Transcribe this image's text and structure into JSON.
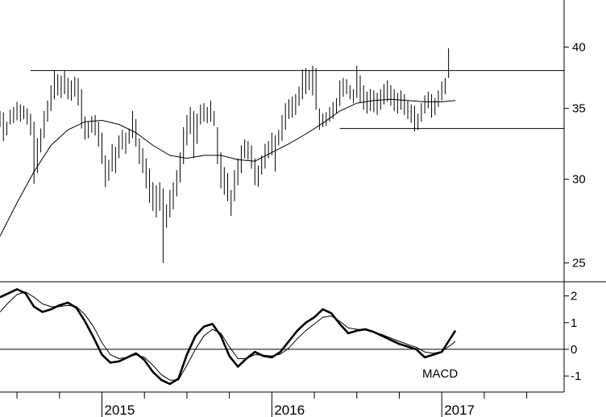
{
  "chart_data": [
    {
      "type": "ohlc",
      "panel": "price",
      "x_unit": "year",
      "x_range": [
        2014.4,
        2017.72
      ],
      "y_scale": "log",
      "y_range": [
        24.0,
        44.0
      ],
      "y_ticks": [
        25,
        30,
        35,
        40
      ],
      "y_tick_labels": [
        "25",
        "30",
        "35",
        "40"
      ],
      "grid": false,
      "bars": [
        [
          2014.4,
          34.8,
          33.6
        ],
        [
          2014.42,
          34.7,
          32.6
        ],
        [
          2014.44,
          34.0,
          33.0
        ],
        [
          2014.46,
          34.9,
          33.8
        ],
        [
          2014.48,
          35.1,
          33.9
        ],
        [
          2014.5,
          35.5,
          34.1
        ],
        [
          2014.52,
          35.3,
          34.0
        ],
        [
          2014.54,
          35.2,
          34.2
        ],
        [
          2014.56,
          35.0,
          33.8
        ],
        [
          2014.58,
          34.6,
          33.0
        ],
        [
          2014.6,
          34.0,
          29.7
        ],
        [
          2014.62,
          32.8,
          30.4
        ],
        [
          2014.64,
          33.5,
          31.8
        ],
        [
          2014.66,
          34.8,
          32.8
        ],
        [
          2014.68,
          35.6,
          34.0
        ],
        [
          2014.7,
          36.8,
          34.8
        ],
        [
          2014.72,
          38.0,
          35.7
        ],
        [
          2014.74,
          37.7,
          36.0
        ],
        [
          2014.76,
          37.6,
          35.8
        ],
        [
          2014.78,
          38.0,
          36.1
        ],
        [
          2014.8,
          37.4,
          35.7
        ],
        [
          2014.82,
          37.2,
          35.6
        ],
        [
          2014.84,
          37.5,
          35.9
        ],
        [
          2014.86,
          37.4,
          35.2
        ],
        [
          2014.88,
          36.5,
          33.5
        ],
        [
          2014.9,
          34.4,
          32.7
        ],
        [
          2014.92,
          34.0,
          32.8
        ],
        [
          2014.94,
          34.4,
          33.2
        ],
        [
          2014.96,
          34.5,
          33.0
        ],
        [
          2014.98,
          34.0,
          32.2
        ],
        [
          2015.0,
          33.2,
          31.0
        ],
        [
          2015.02,
          31.6,
          29.5
        ],
        [
          2015.04,
          31.3,
          29.9
        ],
        [
          2015.06,
          32.4,
          30.5
        ],
        [
          2015.08,
          32.2,
          30.4
        ],
        [
          2015.1,
          33.0,
          31.4
        ],
        [
          2015.12,
          33.4,
          32.0
        ],
        [
          2015.14,
          33.2,
          31.7
        ],
        [
          2015.16,
          33.5,
          32.4
        ],
        [
          2015.18,
          34.8,
          32.8
        ],
        [
          2015.2,
          34.2,
          32.2
        ],
        [
          2015.22,
          32.8,
          31.0
        ],
        [
          2015.24,
          32.1,
          30.4
        ],
        [
          2015.26,
          31.4,
          29.4
        ],
        [
          2015.28,
          30.7,
          28.5
        ],
        [
          2015.3,
          29.8,
          28.0
        ],
        [
          2015.32,
          29.6,
          27.6
        ],
        [
          2015.34,
          29.8,
          28.0
        ],
        [
          2015.36,
          29.4,
          25.0
        ],
        [
          2015.38,
          28.4,
          27.0
        ],
        [
          2015.4,
          29.3,
          27.6
        ],
        [
          2015.42,
          29.8,
          28.1
        ],
        [
          2015.44,
          30.6,
          28.9
        ],
        [
          2015.46,
          31.8,
          29.8
        ],
        [
          2015.48,
          33.6,
          31.0
        ],
        [
          2015.5,
          34.5,
          32.3
        ],
        [
          2015.52,
          35.1,
          33.1
        ],
        [
          2015.54,
          34.8,
          31.4
        ],
        [
          2015.56,
          34.6,
          32.4
        ],
        [
          2015.58,
          35.3,
          33.8
        ],
        [
          2015.6,
          35.4,
          34.0
        ],
        [
          2015.62,
          35.1,
          33.9
        ],
        [
          2015.64,
          35.6,
          34.0
        ],
        [
          2015.66,
          34.8,
          33.7
        ],
        [
          2015.68,
          33.6,
          31.0
        ],
        [
          2015.7,
          31.8,
          29.4
        ],
        [
          2015.72,
          30.8,
          29.0
        ],
        [
          2015.74,
          30.4,
          28.6
        ],
        [
          2015.76,
          29.3,
          27.7
        ],
        [
          2015.78,
          30.6,
          28.6
        ],
        [
          2015.8,
          31.4,
          29.6
        ],
        [
          2015.82,
          32.3,
          30.4
        ],
        [
          2015.84,
          32.7,
          31.4
        ],
        [
          2015.86,
          32.6,
          31.3
        ],
        [
          2015.88,
          32.3,
          30.7
        ],
        [
          2015.9,
          31.4,
          29.6
        ],
        [
          2015.92,
          30.9,
          29.5
        ],
        [
          2015.94,
          31.6,
          30.3
        ],
        [
          2015.96,
          32.4,
          30.7
        ],
        [
          2015.98,
          32.6,
          31.4
        ],
        [
          2016.0,
          33.2,
          31.6
        ],
        [
          2016.02,
          33.0,
          30.5
        ],
        [
          2016.04,
          33.4,
          32.3
        ],
        [
          2016.06,
          34.5,
          32.6
        ],
        [
          2016.08,
          35.4,
          33.4
        ],
        [
          2016.1,
          35.7,
          34.2
        ],
        [
          2016.12,
          35.9,
          34.3
        ],
        [
          2016.14,
          36.1,
          34.5
        ],
        [
          2016.16,
          36.7,
          35.2
        ],
        [
          2016.18,
          38.1,
          35.7
        ],
        [
          2016.2,
          38.2,
          36.1
        ],
        [
          2016.22,
          38.0,
          36.4
        ],
        [
          2016.24,
          38.4,
          36.0
        ],
        [
          2016.26,
          38.2,
          34.9
        ],
        [
          2016.28,
          35.0,
          33.4
        ],
        [
          2016.3,
          34.6,
          33.6
        ],
        [
          2016.32,
          34.7,
          33.7
        ],
        [
          2016.34,
          35.1,
          34.0
        ],
        [
          2016.36,
          35.5,
          34.2
        ],
        [
          2016.38,
          35.8,
          34.6
        ],
        [
          2016.4,
          37.2,
          35.2
        ],
        [
          2016.42,
          37.4,
          35.9
        ],
        [
          2016.44,
          37.3,
          36.1
        ],
        [
          2016.46,
          36.8,
          35.7
        ],
        [
          2016.48,
          36.5,
          35.4
        ],
        [
          2016.5,
          38.4,
          35.8
        ],
        [
          2016.52,
          37.6,
          35.4
        ],
        [
          2016.54,
          36.8,
          34.9
        ],
        [
          2016.56,
          36.3,
          34.6
        ],
        [
          2016.58,
          36.5,
          34.8
        ],
        [
          2016.6,
          36.4,
          34.7
        ],
        [
          2016.62,
          36.2,
          34.5
        ],
        [
          2016.64,
          36.5,
          34.9
        ],
        [
          2016.66,
          36.9,
          35.3
        ],
        [
          2016.68,
          37.2,
          35.5
        ],
        [
          2016.7,
          36.8,
          35.2
        ],
        [
          2016.72,
          36.5,
          34.8
        ],
        [
          2016.74,
          36.2,
          34.6
        ],
        [
          2016.76,
          36.4,
          34.9
        ],
        [
          2016.78,
          36.1,
          34.5
        ],
        [
          2016.8,
          35.6,
          34.2
        ],
        [
          2016.82,
          35.3,
          33.9
        ],
        [
          2016.84,
          35.2,
          33.3
        ],
        [
          2016.86,
          34.6,
          33.4
        ],
        [
          2016.88,
          35.4,
          34.0
        ],
        [
          2016.9,
          36.0,
          34.6
        ],
        [
          2016.92,
          36.3,
          35.0
        ],
        [
          2016.94,
          36.1,
          34.3
        ],
        [
          2016.96,
          35.8,
          34.5
        ],
        [
          2016.98,
          36.4,
          35.1
        ],
        [
          2017.0,
          37.1,
          35.6
        ],
        [
          2017.02,
          37.4,
          36.1
        ],
        [
          2017.04,
          39.9,
          37.4
        ]
      ]
    },
    {
      "type": "line",
      "panel": "macd",
      "x_unit": "year",
      "x_range": [
        2014.4,
        2017.72
      ],
      "y_range": [
        -1.6,
        2.5
      ],
      "y_ticks": [
        -1,
        0,
        1,
        2
      ],
      "y_tick_labels": [
        "-1",
        "0",
        "1",
        "2"
      ],
      "annotation": "MACD",
      "grid": false,
      "series": [
        {
          "values": [
            [
              2014.4,
              1.95
            ],
            [
              2014.45,
              2.1
            ],
            [
              2014.5,
              2.25
            ],
            [
              2014.55,
              2.1
            ],
            [
              2014.6,
              1.6
            ],
            [
              2014.65,
              1.4
            ],
            [
              2014.7,
              1.5
            ],
            [
              2014.75,
              1.65
            ],
            [
              2014.8,
              1.75
            ],
            [
              2014.85,
              1.55
            ],
            [
              2014.9,
              1.05
            ],
            [
              2014.95,
              0.45
            ],
            [
              2015.0,
              -0.2
            ],
            [
              2015.05,
              -0.5
            ],
            [
              2015.1,
              -0.45
            ],
            [
              2015.15,
              -0.3
            ],
            [
              2015.2,
              -0.15
            ],
            [
              2015.25,
              -0.4
            ],
            [
              2015.3,
              -0.85
            ],
            [
              2015.35,
              -1.15
            ],
            [
              2015.4,
              -1.3
            ],
            [
              2015.45,
              -1.1
            ],
            [
              2015.5,
              -0.2
            ],
            [
              2015.55,
              0.5
            ],
            [
              2015.6,
              0.85
            ],
            [
              2015.65,
              0.95
            ],
            [
              2015.7,
              0.5
            ],
            [
              2015.75,
              -0.25
            ],
            [
              2015.8,
              -0.65
            ],
            [
              2015.85,
              -0.35
            ],
            [
              2015.9,
              -0.1
            ],
            [
              2015.95,
              -0.25
            ],
            [
              2016.0,
              -0.3
            ],
            [
              2016.05,
              -0.1
            ],
            [
              2016.1,
              0.3
            ],
            [
              2016.15,
              0.7
            ],
            [
              2016.2,
              1.0
            ],
            [
              2016.25,
              1.2
            ],
            [
              2016.3,
              1.5
            ],
            [
              2016.35,
              1.35
            ],
            [
              2016.4,
              0.95
            ],
            [
              2016.45,
              0.6
            ],
            [
              2016.5,
              0.7
            ],
            [
              2016.55,
              0.75
            ],
            [
              2016.6,
              0.65
            ],
            [
              2016.65,
              0.5
            ],
            [
              2016.7,
              0.35
            ],
            [
              2016.75,
              0.2
            ],
            [
              2016.8,
              0.1
            ],
            [
              2016.85,
              0.0
            ],
            [
              2016.9,
              -0.3
            ],
            [
              2016.95,
              -0.2
            ],
            [
              2017.0,
              -0.1
            ],
            [
              2017.05,
              0.4
            ],
            [
              2017.08,
              0.7
            ]
          ]
        },
        {
          "values": [
            [
              2014.4,
              1.4
            ],
            [
              2014.45,
              1.75
            ],
            [
              2014.5,
              2.05
            ],
            [
              2014.55,
              2.15
            ],
            [
              2014.6,
              1.95
            ],
            [
              2014.65,
              1.7
            ],
            [
              2014.7,
              1.6
            ],
            [
              2014.75,
              1.6
            ],
            [
              2014.8,
              1.65
            ],
            [
              2014.85,
              1.6
            ],
            [
              2014.9,
              1.3
            ],
            [
              2014.95,
              0.85
            ],
            [
              2015.0,
              0.25
            ],
            [
              2015.05,
              -0.2
            ],
            [
              2015.1,
              -0.35
            ],
            [
              2015.15,
              -0.3
            ],
            [
              2015.2,
              -0.2
            ],
            [
              2015.25,
              -0.3
            ],
            [
              2015.3,
              -0.6
            ],
            [
              2015.35,
              -0.95
            ],
            [
              2015.4,
              -1.15
            ],
            [
              2015.45,
              -1.15
            ],
            [
              2015.5,
              -0.6
            ],
            [
              2015.55,
              0.0
            ],
            [
              2015.6,
              0.5
            ],
            [
              2015.65,
              0.75
            ],
            [
              2015.7,
              0.6
            ],
            [
              2015.75,
              0.1
            ],
            [
              2015.8,
              -0.35
            ],
            [
              2015.85,
              -0.35
            ],
            [
              2015.9,
              -0.2
            ],
            [
              2015.95,
              -0.22
            ],
            [
              2016.0,
              -0.25
            ],
            [
              2016.05,
              -0.18
            ],
            [
              2016.1,
              0.05
            ],
            [
              2016.15,
              0.4
            ],
            [
              2016.2,
              0.7
            ],
            [
              2016.25,
              0.95
            ],
            [
              2016.3,
              1.2
            ],
            [
              2016.35,
              1.25
            ],
            [
              2016.4,
              1.05
            ],
            [
              2016.45,
              0.8
            ],
            [
              2016.5,
              0.75
            ],
            [
              2016.55,
              0.72
            ],
            [
              2016.6,
              0.65
            ],
            [
              2016.65,
              0.55
            ],
            [
              2016.7,
              0.42
            ],
            [
              2016.75,
              0.3
            ],
            [
              2016.8,
              0.18
            ],
            [
              2016.85,
              0.08
            ],
            [
              2016.9,
              -0.1
            ],
            [
              2016.95,
              -0.15
            ],
            [
              2017.0,
              -0.08
            ],
            [
              2017.05,
              0.15
            ],
            [
              2017.08,
              0.3
            ]
          ]
        }
      ]
    }
  ],
  "x_axis": {
    "year_labels": [
      {
        "text": "2015",
        "x": 2015.0
      },
      {
        "text": "2016",
        "x": 2016.0
      },
      {
        "text": "2017",
        "x": 2017.0
      }
    ],
    "quarter_ticks": [
      2014.5,
      2014.75,
      2015.25,
      2015.5,
      2015.75,
      2016.25,
      2016.5,
      2016.75,
      2017.25,
      2017.5
    ]
  },
  "moving_average": [
    [
      2014.4,
      26.5
    ],
    [
      2014.5,
      28.5
    ],
    [
      2014.6,
      30.5
    ],
    [
      2014.7,
      32.3
    ],
    [
      2014.8,
      33.4
    ],
    [
      2014.9,
      34.0
    ],
    [
      2015.0,
      34.1
    ],
    [
      2015.1,
      33.8
    ],
    [
      2015.2,
      33.2
    ],
    [
      2015.3,
      32.3
    ],
    [
      2015.4,
      31.6
    ],
    [
      2015.5,
      31.4
    ],
    [
      2015.6,
      31.6
    ],
    [
      2015.7,
      31.6
    ],
    [
      2015.8,
      31.3
    ],
    [
      2015.9,
      31.2
    ],
    [
      2016.0,
      31.8
    ],
    [
      2016.1,
      32.4
    ],
    [
      2016.2,
      33.1
    ],
    [
      2016.3,
      33.9
    ],
    [
      2016.4,
      34.8
    ],
    [
      2016.5,
      35.4
    ],
    [
      2016.6,
      35.6
    ],
    [
      2016.7,
      35.7
    ],
    [
      2016.8,
      35.6
    ],
    [
      2016.9,
      35.5
    ],
    [
      2017.0,
      35.5
    ],
    [
      2017.08,
      35.6
    ]
  ],
  "reference_lines": [
    {
      "y": 38.0,
      "x_from": 2014.58,
      "x_to": 2017.72
    },
    {
      "y": 33.5,
      "x_from": 2016.4,
      "x_to": 2017.72
    }
  ]
}
